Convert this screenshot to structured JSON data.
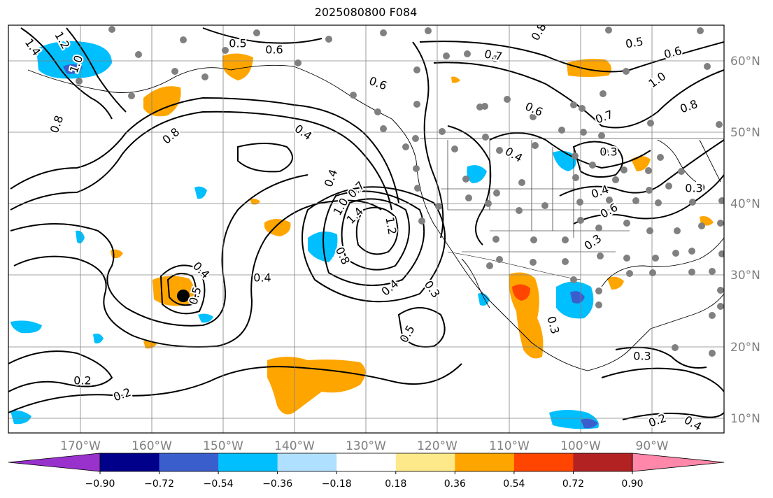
{
  "title": "2025080800 F084",
  "map": {
    "lon_labels": [
      "170°W",
      "160°W",
      "150°W",
      "140°W",
      "130°W",
      "120°W",
      "110°W",
      "100°W",
      "90°W"
    ],
    "lat_labels": [
      "60°N",
      "50°N",
      "40°N",
      "30°N",
      "20°N",
      "10°N"
    ],
    "contour_labels": [
      "1.4",
      "1.2",
      "1.0",
      "0.8",
      "0.5",
      "0.6",
      "0.7",
      "0.8",
      "0.5",
      "0.6",
      "1.0",
      "0.8",
      "0.6",
      "0.6",
      "0.4",
      "0.8",
      "0.4",
      "0.4",
      "0.7",
      "1.0",
      "1.4",
      "1.2",
      "0.8",
      "0.4",
      "0.3",
      "0.4",
      "0.5",
      "0.4",
      "0.5",
      "0.2",
      "0.2",
      "0.3",
      "0.3",
      "0.4",
      "0.6",
      "0.3",
      "0.3",
      "0.3",
      "0.2",
      "0.4",
      "0.7"
    ],
    "colors": {
      "positive_light": "#fde98a",
      "positive_mid": "#ffa500",
      "positive_strong": "#ff4500",
      "negative_light": "#b0e0ff",
      "negative_mid": "#00bfff",
      "negative_strong": "#3a5fcd",
      "contour": "#000000",
      "station_dot": "#808080",
      "grid": "#808080"
    },
    "legend": {
      "tick_labels": [
        "−0.90",
        "−0.72",
        "−0.54",
        "−0.36",
        "−0.18",
        "0.18",
        "0.36",
        "0.54",
        "0.72",
        "0.90"
      ],
      "colors": [
        "#9932cc",
        "#00008b",
        "#3a5fcd",
        "#00bfff",
        "#b0e0ff",
        "#ffffff",
        "#fde98a",
        "#ffa500",
        "#ff4500",
        "#b22222",
        "#ff88aa"
      ]
    }
  }
}
